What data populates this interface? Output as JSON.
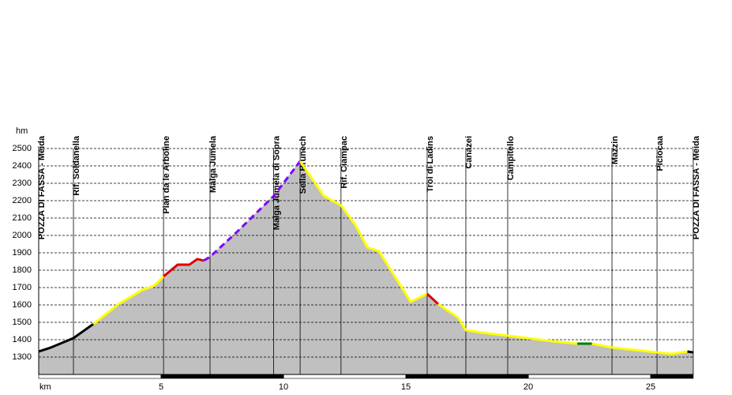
{
  "chart_data": {
    "type": "area",
    "y_label": "hm",
    "x_label": "km",
    "xlim": [
      0,
      26.74
    ],
    "ylim": [
      1200,
      2500
    ],
    "xticks": [
      5,
      10,
      15,
      20,
      25
    ],
    "yticks": [
      1300,
      1400,
      1500,
      1600,
      1700,
      1800,
      1900,
      2000,
      2100,
      2200,
      2300,
      2400,
      2500
    ],
    "grid": true,
    "fill": "#c0c0c0",
    "series": [
      {
        "color": "#000000",
        "x": [
          0,
          0.5,
          1.42,
          2.23
        ],
        "values": [
          1332,
          1355,
          1409,
          1490
        ]
      },
      {
        "color": "#ffff00",
        "x": [
          2.23,
          3.26,
          4.23,
          4.71,
          5.1
        ],
        "values": [
          1490,
          1605,
          1686,
          1710,
          1764
        ]
      },
      {
        "color": "#dd0000",
        "x": [
          5.1,
          5.68,
          6.16,
          6.48,
          6.74
        ],
        "values": [
          1764,
          1832,
          1832,
          1864,
          1855
        ]
      },
      {
        "color": "#8000ff",
        "dashed": true,
        "x": [
          6.74,
          7.0,
          8.1,
          9.6,
          10.68
        ],
        "values": [
          1855,
          1877,
          2020,
          2227,
          2427
        ]
      },
      {
        "color": "#ffff00",
        "x": [
          10.68,
          11.65,
          12.35,
          12.94,
          13.42,
          13.9,
          14.55,
          15.19,
          15.87
        ],
        "values": [
          2427,
          2227,
          2173,
          2059,
          1932,
          1909,
          1764,
          1618,
          1664
        ]
      },
      {
        "color": "#dd0000",
        "x": [
          15.87,
          16.32
        ],
        "values": [
          1664,
          1605
        ]
      },
      {
        "color": "#ffff00",
        "x": [
          16.32,
          17.13,
          17.45,
          18.1,
          19.16,
          21.0,
          22.0
        ],
        "values": [
          1605,
          1527,
          1455,
          1441,
          1423,
          1391,
          1377
        ]
      },
      {
        "color": "#008000",
        "x": [
          22.0,
          22.6
        ],
        "values": [
          1377,
          1377
        ]
      },
      {
        "color": "#ffff00",
        "x": [
          22.6,
          23.42,
          25.26,
          25.84,
          26.5
        ],
        "values": [
          1377,
          1355,
          1327,
          1318,
          1332
        ]
      },
      {
        "color": "#000000",
        "x": [
          26.5,
          26.74
        ],
        "values": [
          1332,
          1327
        ]
      }
    ],
    "waypoints": [
      {
        "name": "POZZA DI FASSA - Meida",
        "km": 0
      },
      {
        "name": "Rif. Soldanella",
        "km": 1.42
      },
      {
        "name": "Pian da le Arboline",
        "km": 5.1
      },
      {
        "name": "Malga Jumela",
        "km": 7.0
      },
      {
        "name": "Malga Jumela di Sopra",
        "km": 9.6
      },
      {
        "name": "Sella Brunech",
        "km": 10.68
      },
      {
        "name": "Rif. Ciampac",
        "km": 12.35
      },
      {
        "name": "Troi di Ladins",
        "km": 15.87
      },
      {
        "name": "Canazei",
        "km": 17.45
      },
      {
        "name": "Campitello",
        "km": 19.16
      },
      {
        "name": "Mazzin",
        "km": 23.42
      },
      {
        "name": "Piciocaa",
        "km": 25.26
      },
      {
        "name": "POZZA DI FASSA - Meida",
        "km": 26.74
      }
    ]
  }
}
